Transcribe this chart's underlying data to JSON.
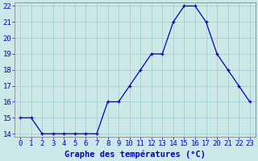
{
  "x_positions": [
    0,
    1,
    2,
    3,
    4,
    5,
    6,
    7,
    8,
    9,
    10,
    11,
    12,
    13,
    14,
    15,
    16,
    17,
    18,
    19,
    20,
    21
  ],
  "x_labels": [
    "0",
    "1",
    "2",
    "3",
    "4",
    "5",
    "6",
    "7",
    "8",
    "9",
    "10",
    "11",
    "12",
    "13",
    "14",
    "15",
    "16",
    "17",
    "20",
    "21",
    "22",
    "23"
  ],
  "y": [
    15,
    15,
    14,
    14,
    14,
    14,
    14,
    14,
    16,
    16,
    17,
    18,
    19,
    19,
    21,
    22,
    22,
    21,
    19,
    18,
    17,
    16
  ],
  "xlim": [
    -0.5,
    21.5
  ],
  "ylim": [
    13.8,
    22.2
  ],
  "yticks": [
    14,
    15,
    16,
    17,
    18,
    19,
    20,
    21,
    22
  ],
  "xlabel": "Graphe des températures (°C)",
  "line_color": "#0000bb",
  "marker_color": "#0000bb",
  "bg_color": "#cce8e8",
  "grid_color": "#99cccc",
  "axis_label_color": "#0000cc",
  "tick_label_color": "#0000cc",
  "xlabel_fontsize": 7.5,
  "tick_fontsize": 6.5
}
